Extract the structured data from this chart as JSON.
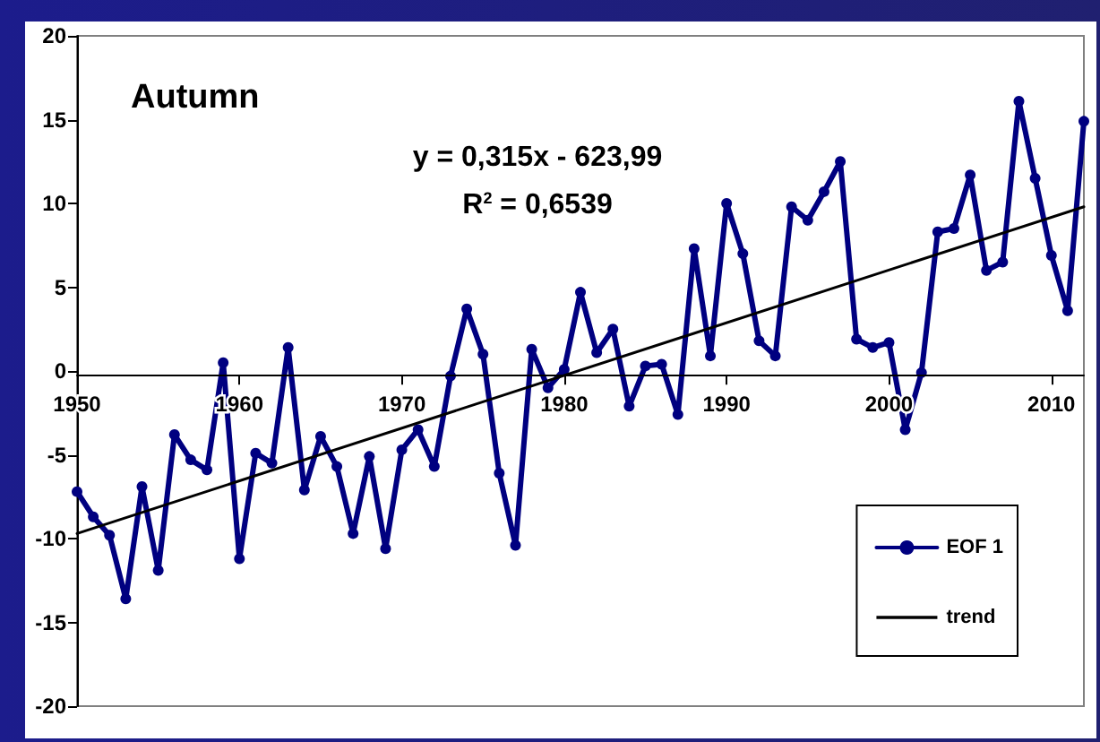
{
  "chart_data": {
    "type": "line",
    "title": "Autumn",
    "annotations": [
      "y = 0,315x - 623,99",
      "R$^{2}$ = 0,6539"
    ],
    "xlim": [
      1950,
      2012
    ],
    "xticks": [
      1950,
      1960,
      1970,
      1980,
      1990,
      2000,
      2010
    ],
    "ylim": [
      -20,
      20
    ],
    "yticks": [
      -20,
      -15,
      -10,
      -5,
      0,
      5,
      10,
      15,
      20
    ],
    "grid": false,
    "legend": "bottom right",
    "marker": "circle",
    "line_style": "solid",
    "series": [
      {
        "name": "EOF 1",
        "color": "#000080",
        "x": [
          1950,
          1951,
          1952,
          1953,
          1954,
          1955,
          1956,
          1957,
          1958,
          1959,
          1960,
          1961,
          1962,
          1963,
          1964,
          1965,
          1966,
          1967,
          1968,
          1969,
          1970,
          1971,
          1972,
          1973,
          1974,
          1975,
          1976,
          1977,
          1978,
          1979,
          1980,
          1981,
          1982,
          1983,
          1984,
          1985,
          1986,
          1987,
          1988,
          1989,
          1990,
          1991,
          1992,
          1993,
          1994,
          1995,
          1996,
          1997,
          1998,
          1999,
          2000,
          2001,
          2002,
          2003,
          2004,
          2005,
          2006,
          2007,
          2008,
          2009,
          2010,
          2011,
          2012
        ],
        "values": [
          -7.2,
          -8.7,
          -9.8,
          -13.6,
          -6.9,
          -11.9,
          -3.8,
          -5.3,
          -5.9,
          0.5,
          -11.2,
          -4.9,
          -5.5,
          1.4,
          -7.1,
          -3.9,
          -5.7,
          -9.7,
          -5.1,
          -10.6,
          -4.7,
          -3.5,
          -5.7,
          -0.3,
          3.7,
          1.0,
          -6.1,
          -10.4,
          1.3,
          -1.0,
          0.1,
          4.7,
          1.1,
          2.5,
          -2.1,
          0.3,
          0.4,
          -2.6,
          7.3,
          0.9,
          10.0,
          7.0,
          1.8,
          0.9,
          9.8,
          9.0,
          10.7,
          12.5,
          1.9,
          1.4,
          1.7,
          -3.5,
          -0.1,
          8.3,
          8.5,
          11.7,
          6.0,
          6.5,
          16.1,
          11.5,
          6.9,
          3.6,
          14.9
        ]
      },
      {
        "name": "trend",
        "color": "#000000",
        "marker": "none",
        "x": [
          1950,
          2012
        ],
        "values": [
          -9.7,
          9.8
        ]
      }
    ]
  }
}
